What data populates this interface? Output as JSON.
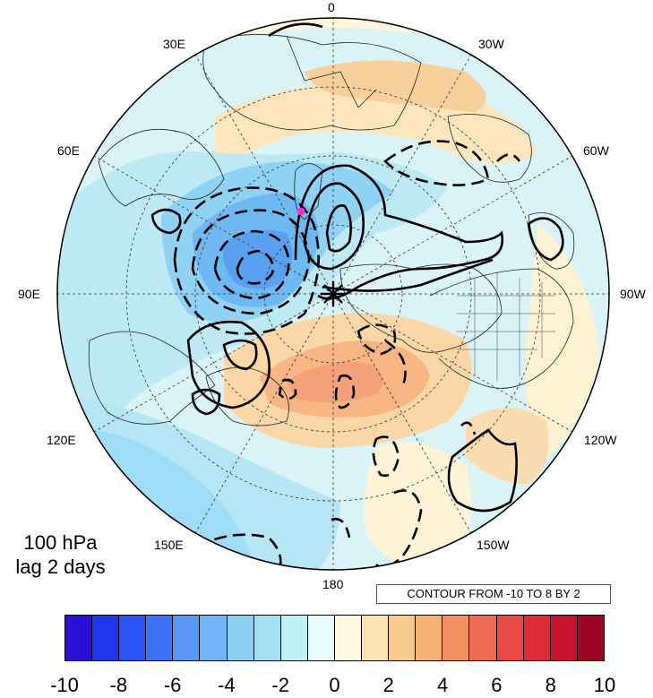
{
  "longitude_labels": {
    "lon_0": "0",
    "lon_30e": "30E",
    "lon_30w": "30W",
    "lon_60e": "60E",
    "lon_60w": "60W",
    "lon_90e": "90E",
    "lon_90w": "90W",
    "lon_120e": "120E",
    "lon_120w": "120W",
    "lon_150e": "150E",
    "lon_150w": "150W",
    "lon_180": "180"
  },
  "caption": {
    "level": "100 hPa",
    "lag": "lag 2 days"
  },
  "contour_info": "CONTOUR FROM -10 TO 8 BY 2",
  "colorbar": {
    "colors": [
      "#2b0fd6",
      "#2236ee",
      "#2c55f5",
      "#3f72f7",
      "#5a98f7",
      "#6fb4f6",
      "#8dcff3",
      "#a6e0f3",
      "#bff0f5",
      "#e6fbfa",
      "#fffbe0",
      "#fce6b6",
      "#f8cc91",
      "#f5b075",
      "#f39061",
      "#ee6c52",
      "#e94a43",
      "#dd2a36",
      "#c5132d",
      "#9b0522"
    ],
    "tick_labels": [
      "-10",
      "-8",
      "-6",
      "-4",
      "-2",
      "0",
      "2",
      "4",
      "6",
      "8",
      "10"
    ]
  },
  "colors": {
    "negative": "#8fd2f3",
    "strong_negative": "#5fa8f4",
    "positive": "#f8d4a0",
    "strong_positive": "#f39a70",
    "neutral": "#fffbe6"
  }
}
